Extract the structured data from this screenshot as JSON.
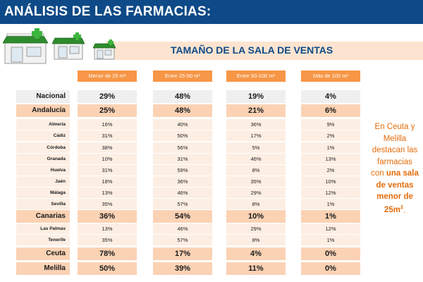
{
  "header": {
    "title": "ANÁLISIS DE LAS FARMACIAS:"
  },
  "subtitle": "TAMAÑO DE LA SALA DE VENTAS",
  "colors": {
    "header_bg": "#0d4a87",
    "accent": "#f79646",
    "region_row": "#fbd2b4",
    "province_row": "#fdeee3",
    "national_row": "#efefef",
    "note_text": "#e46c0a"
  },
  "icons": [
    "pharmacy-shop-icon",
    "pharmacy-shop-icon",
    "pharmacy-shop-icon"
  ],
  "columns": [
    "Menor de 25 m²",
    "Entre 25-50 m²",
    "Entre 50-100 m²",
    "Más de 100 m²"
  ],
  "rows": [
    {
      "label": "Nacional",
      "values": [
        "29%",
        "48%",
        "19%",
        "4%"
      ]
    },
    {
      "label": "Andalucía",
      "values": [
        "25%",
        "48%",
        "21%",
        "6%"
      ]
    },
    {
      "label": "Almería",
      "values": [
        "16%",
        "40%",
        "36%",
        "9%"
      ]
    },
    {
      "label": "Cádiz",
      "values": [
        "31%",
        "50%",
        "17%",
        "2%"
      ]
    },
    {
      "label": "Córdoba",
      "values": [
        "38%",
        "56%",
        "5%",
        "1%"
      ]
    },
    {
      "label": "Granada",
      "values": [
        "10%",
        "31%",
        "46%",
        "13%"
      ]
    },
    {
      "label": "Huelva",
      "values": [
        "31%",
        "59%",
        "8%",
        "2%"
      ]
    },
    {
      "label": "Jaén",
      "values": [
        "18%",
        "36%",
        "35%",
        "10%"
      ]
    },
    {
      "label": "Málaga",
      "values": [
        "13%",
        "46%",
        "29%",
        "12%"
      ]
    },
    {
      "label": "Sevilla",
      "values": [
        "35%",
        "57%",
        "8%",
        "1%"
      ]
    },
    {
      "label": "Canarias",
      "values": [
        "36%",
        "54%",
        "10%",
        "1%"
      ]
    },
    {
      "label": "Las Palmas",
      "values": [
        "13%",
        "46%",
        "29%",
        "12%"
      ]
    },
    {
      "label": "Tenerife",
      "values": [
        "35%",
        "57%",
        "8%",
        "1%"
      ]
    },
    {
      "label": "Ceuta",
      "values": [
        "78%",
        "17%",
        "4%",
        "0%"
      ]
    },
    {
      "label": "Melilla",
      "values": [
        "50%",
        "39%",
        "11%",
        "0%"
      ]
    }
  ],
  "note": {
    "line1": "En Ceuta y",
    "line2": "Melilla",
    "line3": "destacan las",
    "line4": "farmacias",
    "line5_a": "con ",
    "line5_b": "una sala",
    "line6": "de ventas",
    "line7": "menor de",
    "line8": "25m",
    "sup": "2",
    "end": "."
  }
}
